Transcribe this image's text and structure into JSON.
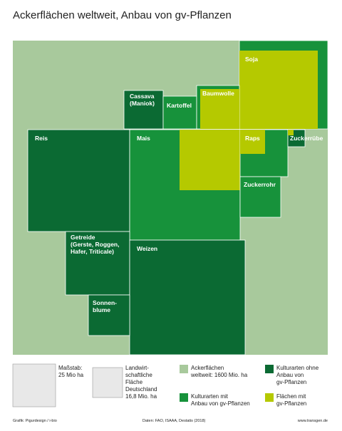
{
  "header": {
    "title": "Ackerflächen weltweit, Anbau von gv-Pflanzen"
  },
  "crops": [
    {
      "lines": [
        "Soja"
      ]
    },
    {
      "lines": [
        "Cassava",
        "(Maniok)"
      ]
    },
    {
      "lines": [
        "Kartoffel"
      ]
    },
    {
      "lines": [
        "Baumwolle"
      ]
    },
    {
      "lines": [
        "Reis"
      ]
    },
    {
      "lines": [
        "Mais"
      ]
    },
    {
      "lines": [
        "Raps"
      ]
    },
    {
      "lines": [
        "Zuckerrübe"
      ]
    },
    {
      "lines": [
        "Zuckerrohr"
      ]
    },
    {
      "lines": [
        "Getreide",
        "(Gerste, Roggen,",
        "Hafer, Triticale)"
      ]
    },
    {
      "lines": [
        "Weizen"
      ]
    },
    {
      "lines": [
        "Sonnen-",
        "blume"
      ]
    }
  ],
  "scale": {
    "lines": [
      "Maßstab:",
      "25 Mio ha"
    ]
  },
  "germany": {
    "lines": [
      "Landwirt-",
      "schaftliche",
      "Fläche",
      "Deutschland",
      "16,8 Mio. ha"
    ]
  },
  "legend": [
    {
      "lines": [
        "Ackerflächen",
        "weltweit: 1600 Mio. ha"
      ]
    },
    {
      "lines": [
        "Kulturarten ohne",
        "Anbau von",
        "gv-Pflanzen"
      ]
    },
    {
      "lines": [
        "Kulturarten mit",
        "Anbau von gv-Pflanzen"
      ]
    },
    {
      "lines": [
        "Flächen mit",
        "gv-Pflanzen"
      ]
    }
  ],
  "footer": {
    "credit": "Grafik: Pigurdesign / i-bio",
    "source": "Daten: FAO, ISAAA, Destatis (2018)",
    "url": "www.transgen.de"
  }
}
